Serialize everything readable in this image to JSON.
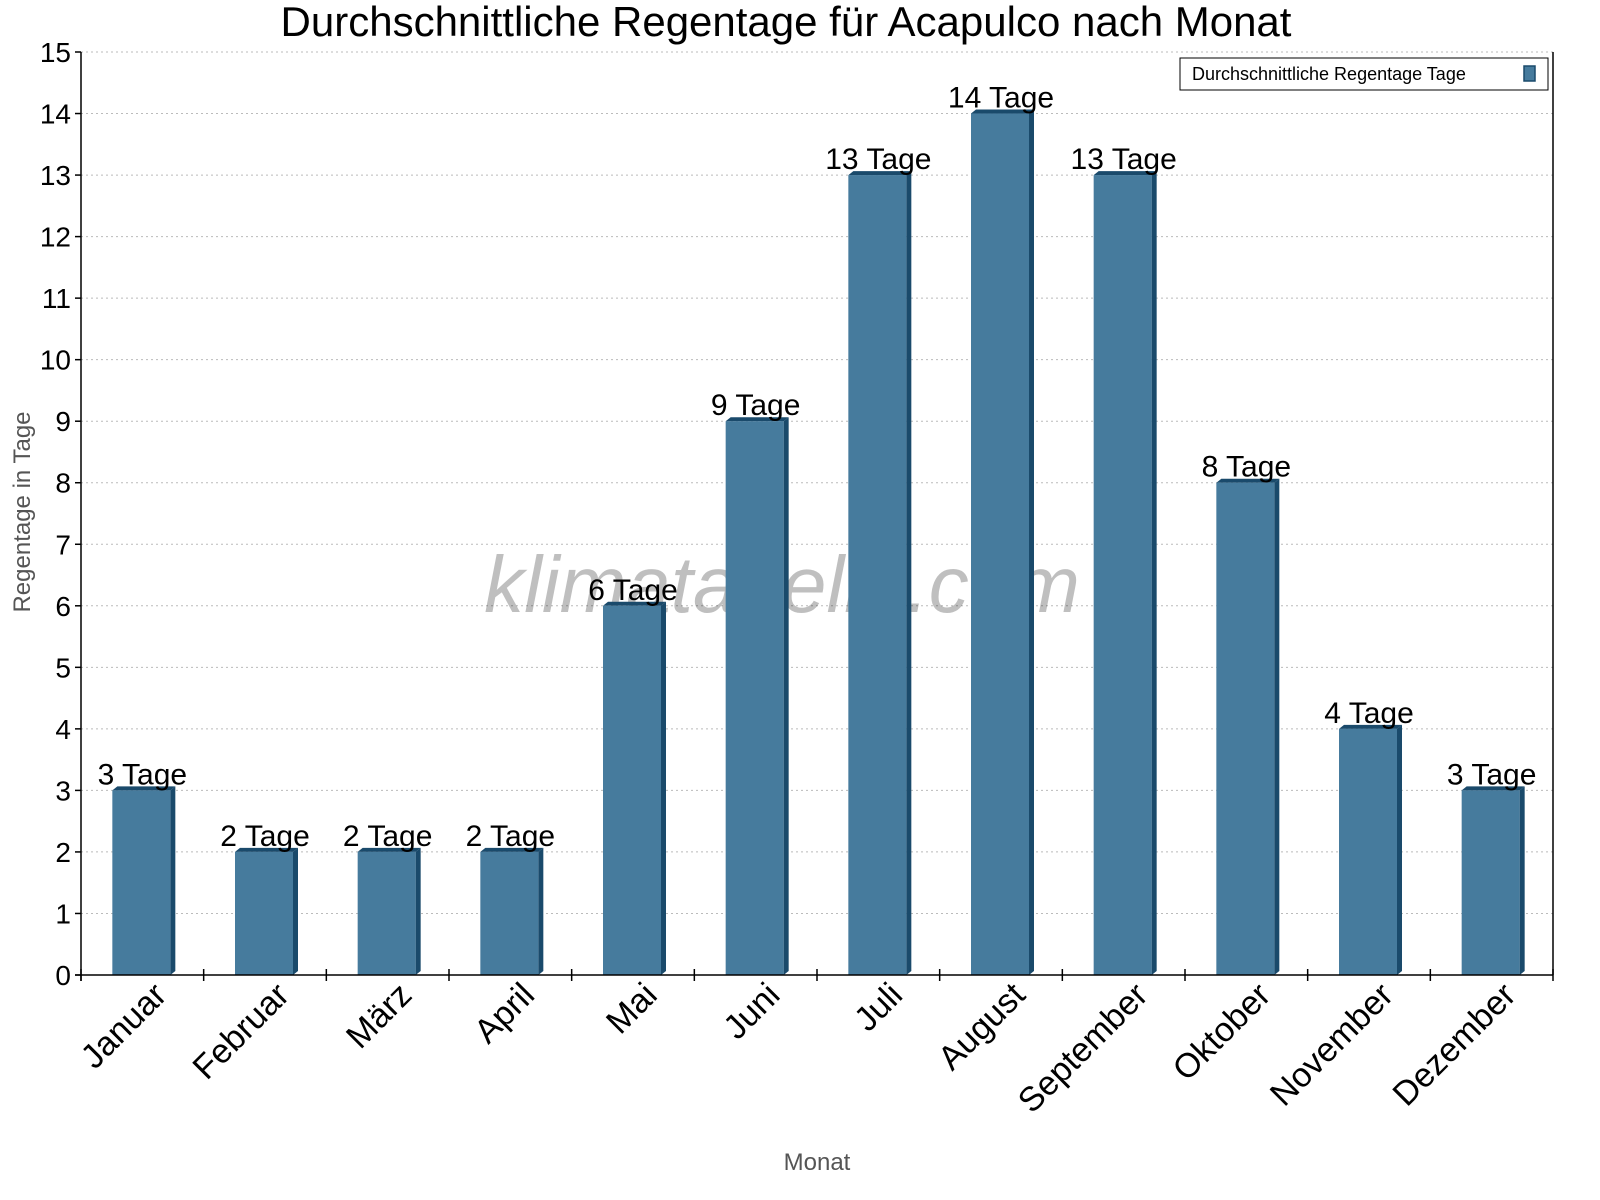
{
  "chart_data": {
    "type": "bar",
    "title": "Durchschnittliche Regentage für Acapulco nach Monat",
    "xlabel": "Monat",
    "ylabel": "Regentage in Tage",
    "ylim": [
      0,
      15
    ],
    "yticks": [
      0,
      1,
      2,
      3,
      4,
      5,
      6,
      7,
      8,
      9,
      10,
      11,
      12,
      13,
      14,
      15
    ],
    "grid": true,
    "legend_position": "top-right",
    "categories": [
      "Januar",
      "Februar",
      "März",
      "April",
      "Mai",
      "Juni",
      "Juli",
      "August",
      "September",
      "Oktober",
      "November",
      "Dezember"
    ],
    "series": [
      {
        "name": "Durchschnittliche Regentage Tage",
        "values": [
          3,
          2,
          2,
          2,
          6,
          9,
          13,
          14,
          13,
          8,
          4,
          3
        ],
        "color": "#467b9d",
        "edge_color": "#1a4a6b"
      }
    ],
    "data_labels": [
      "3 Tage",
      "2 Tage",
      "2 Tage",
      "2 Tage",
      "6 Tage",
      "9 Tage",
      "13 Tage",
      "14 Tage",
      "13 Tage",
      "8 Tage",
      "4 Tage",
      "3 Tage"
    ],
    "watermark": "klimatabelle.com"
  }
}
